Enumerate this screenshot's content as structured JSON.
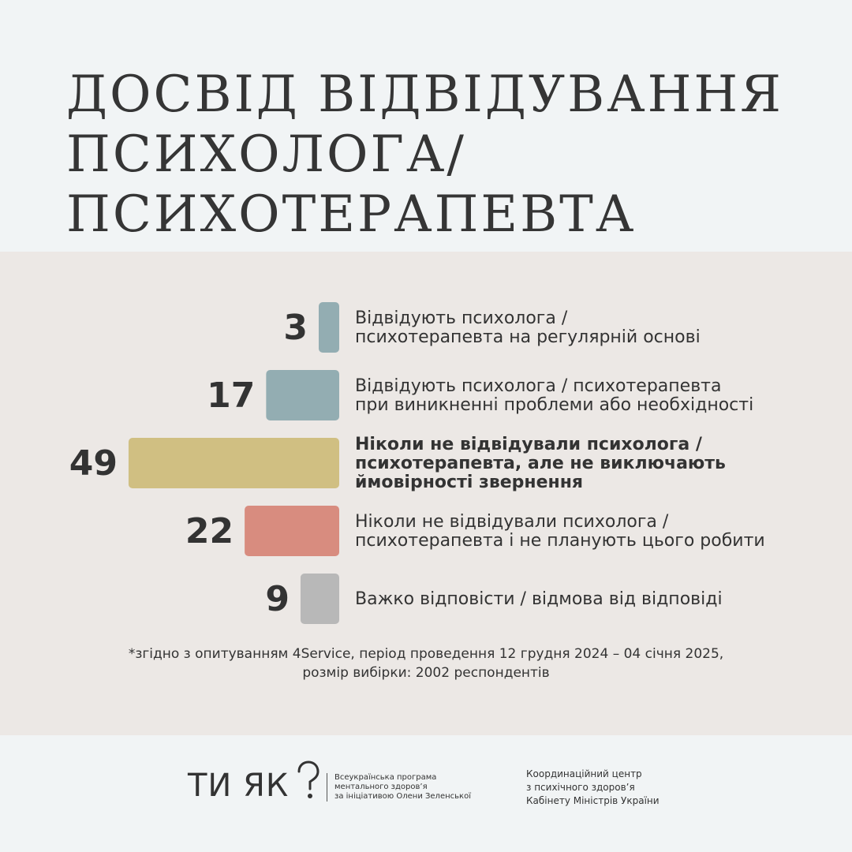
{
  "title_lines": [
    "ДОСВІД ВІДВІДУВАННЯ",
    "ПСИХОЛОГА/",
    "ПСИХОТЕРАПЕВТА"
  ],
  "chart_data": {
    "type": "bar",
    "orientation": "horizontal",
    "unit": "%",
    "bars": [
      {
        "value": 3,
        "label_lines": [
          "Відвідують психолога /",
          "психотерапевта на регулярній основі"
        ],
        "color": "#93adb2",
        "bold": false
      },
      {
        "value": 17,
        "label_lines": [
          "Відвідують психолога / психотерапевта",
          "при виникненні проблеми або необхідності"
        ],
        "color": "#93adb2",
        "bold": false
      },
      {
        "value": 49,
        "label_lines": [
          "Ніколи не відвідували психолога /",
          "психотерапевта, але не виключають",
          "ймовірності звернення"
        ],
        "color": "#d0bf82",
        "bold": true
      },
      {
        "value": 22,
        "label_lines": [
          "Ніколи не відвідували психолога /",
          "психотерапевта і не планують цього робити"
        ],
        "color": "#d88c7f",
        "bold": false
      },
      {
        "value": 9,
        "label_lines": [
          "Важко відповісти / відмова від відповіді"
        ],
        "color": "#b8b8b8",
        "bold": false
      }
    ]
  },
  "footnote_lines": [
    "*згідно з опитуванням 4Service, період проведення 12 грудня 2024 – 04 січня 2025,",
    "розмір вибірки: 2002 респондентів"
  ],
  "footer": {
    "logo_text": "ТИ ЯК",
    "logo_icon": "question-mark-icon",
    "program_lines": [
      "Всеукраїнська програма",
      "ментального здоров’я",
      "за ініціативою Олени Зеленської"
    ],
    "center_lines": [
      "Координаційний центр",
      "з психічного здоров’я",
      "Кабінету Міністрів України"
    ]
  }
}
